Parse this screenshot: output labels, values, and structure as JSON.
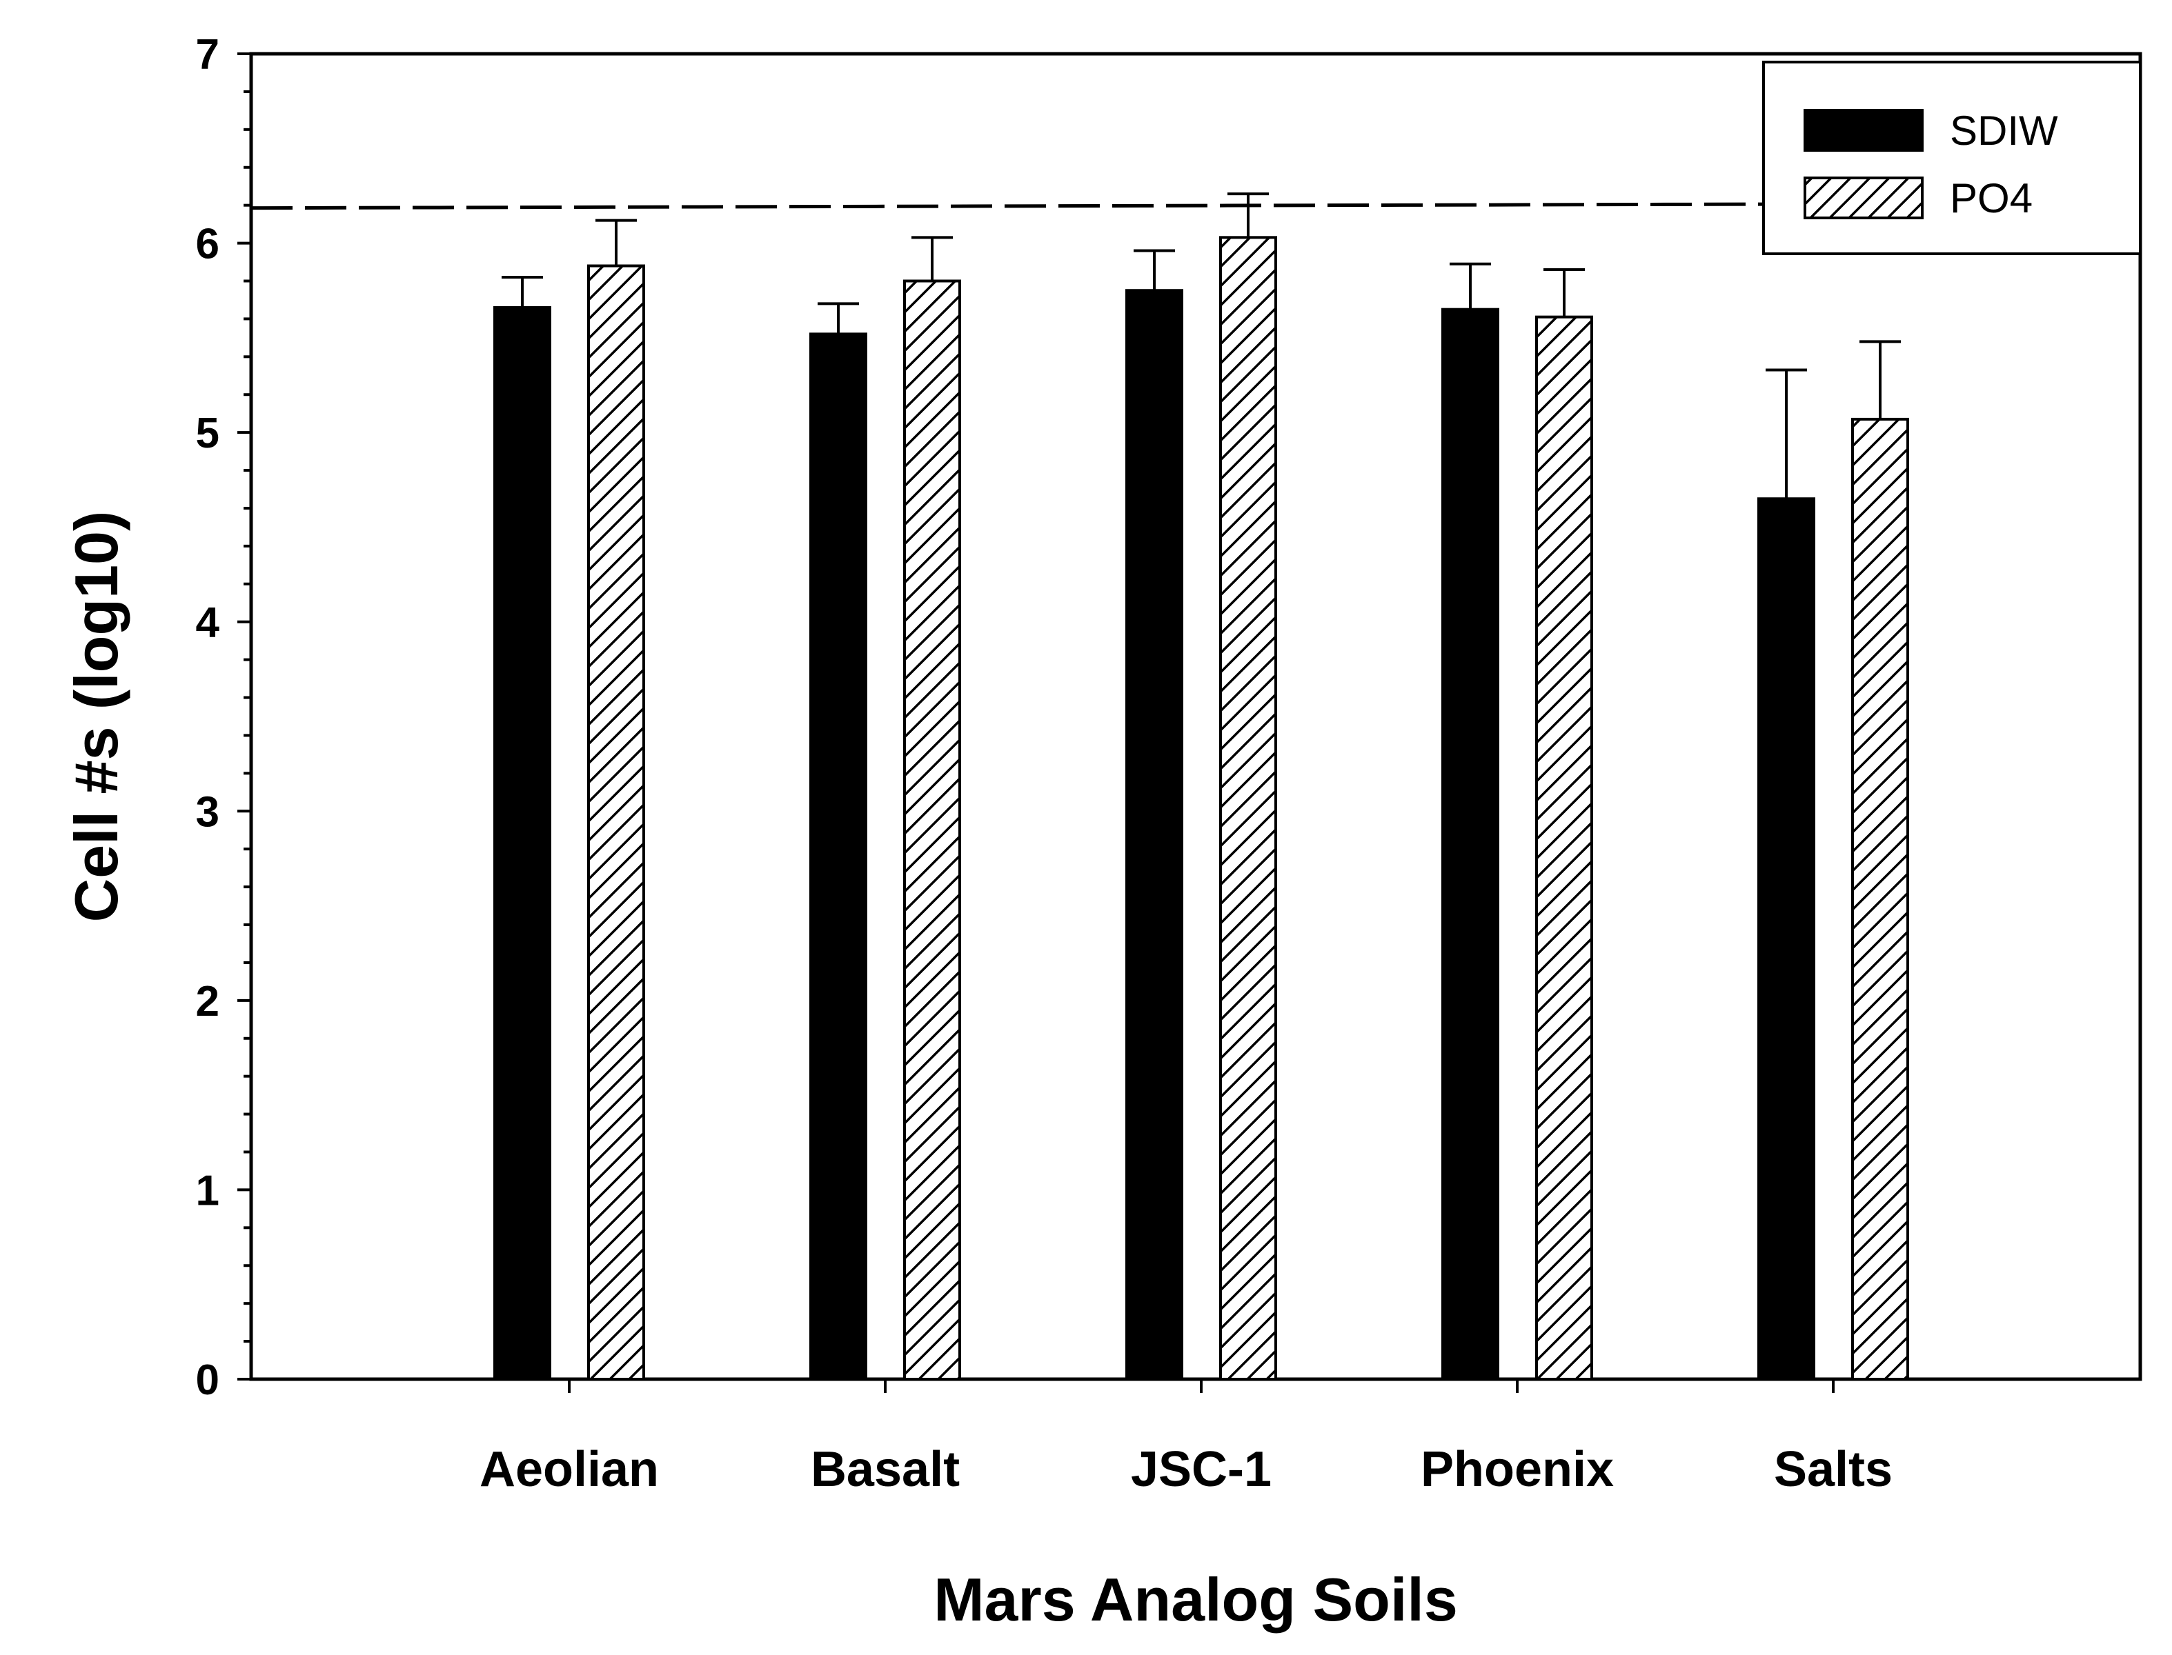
{
  "chart_data": {
    "type": "bar",
    "title": "",
    "xlabel": "Mars Analog Soils",
    "ylabel": "Cell #s (log10)",
    "ylim": [
      0,
      7
    ],
    "yticks": [
      "0",
      "1",
      "2",
      "3",
      "4",
      "5",
      "6",
      "7"
    ],
    "categories": [
      "Aeolian",
      "Basalt",
      "JSC-1",
      "Phoenix",
      "Salts"
    ],
    "series": [
      {
        "name": "SDIW",
        "fill": "solid",
        "values": [
          5.66,
          5.52,
          5.75,
          5.65,
          4.65
        ],
        "errors": [
          0.16,
          0.16,
          0.21,
          0.24,
          0.68
        ]
      },
      {
        "name": "PO4",
        "fill": "hatched",
        "values": [
          5.88,
          5.8,
          6.03,
          5.61,
          5.07
        ],
        "errors": [
          0.24,
          0.23,
          0.23,
          0.25,
          0.41
        ]
      }
    ],
    "reference_line": {
      "y": 6.2,
      "style": "dashed"
    },
    "legend_position": "top-right",
    "grid": false,
    "colors": {
      "bar": "#000000",
      "background": "#ffffff",
      "hatch": "#000000"
    }
  }
}
